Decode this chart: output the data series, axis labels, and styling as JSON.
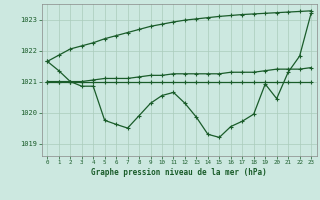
{
  "title": "Graphe pression niveau de la mer (hPa)",
  "background_color": "#cce8e0",
  "grid_color": "#aaccbb",
  "line_color": "#1a5c2a",
  "xlim": [
    -0.5,
    23.5
  ],
  "ylim": [
    1018.6,
    1023.5
  ],
  "yticks": [
    1019,
    1020,
    1021,
    1022,
    1023
  ],
  "xticks": [
    0,
    1,
    2,
    3,
    4,
    5,
    6,
    7,
    8,
    9,
    10,
    11,
    12,
    13,
    14,
    15,
    16,
    17,
    18,
    19,
    20,
    21,
    22,
    23
  ],
  "series_main": [
    1021.65,
    1021.35,
    1021.0,
    1020.85,
    1020.85,
    1019.75,
    1019.62,
    1019.5,
    1019.9,
    1020.3,
    1020.55,
    1020.65,
    1020.3,
    1019.85,
    1019.3,
    1019.2,
    1019.55,
    1019.72,
    1019.95,
    1020.92,
    1020.45,
    1021.3,
    1021.82,
    1023.2
  ],
  "series_flat1": [
    1021.0,
    1021.0,
    1021.0,
    1021.0,
    1021.05,
    1021.1,
    1021.1,
    1021.1,
    1021.15,
    1021.2,
    1021.2,
    1021.25,
    1021.25,
    1021.25,
    1021.25,
    1021.25,
    1021.3,
    1021.3,
    1021.3,
    1021.35,
    1021.4,
    1021.4,
    1021.4,
    1021.45
  ],
  "series_flat2": [
    1021.0,
    1021.0,
    1021.0,
    1021.0,
    1021.0,
    1021.0,
    1021.0,
    1021.0,
    1021.0,
    1021.0,
    1021.0,
    1021.0,
    1021.0,
    1021.0,
    1021.0,
    1021.0,
    1021.0,
    1021.0,
    1021.0,
    1021.0,
    1021.0,
    1021.0,
    1021.0,
    1021.0
  ],
  "series_diagonal": [
    1021.65,
    1021.85,
    1022.05,
    1022.15,
    1022.25,
    1022.38,
    1022.48,
    1022.58,
    1022.68,
    1022.78,
    1022.85,
    1022.92,
    1022.98,
    1023.02,
    1023.06,
    1023.1,
    1023.13,
    1023.16,
    1023.18,
    1023.2,
    1023.22,
    1023.24,
    1023.26,
    1023.28
  ]
}
